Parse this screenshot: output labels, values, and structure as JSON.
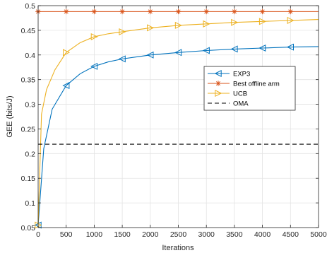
{
  "chart_data": {
    "type": "line",
    "xlabel": "Iterations",
    "ylabel": "GEE (bits/J)",
    "xlim": [
      0,
      5000
    ],
    "ylim": [
      0.05,
      0.5
    ],
    "xticks": [
      0,
      500,
      1000,
      1500,
      2000,
      2500,
      3000,
      3500,
      4000,
      4500,
      5000
    ],
    "yticks": [
      0.05,
      0.1,
      0.15,
      0.2,
      0.25,
      0.3,
      0.35,
      0.4,
      0.45,
      0.5
    ],
    "grid": true,
    "legend_position": "center-right",
    "series": [
      {
        "name": "EXP3",
        "color": "#0072BD",
        "marker": "triangle-left",
        "x": [
          0,
          100,
          250,
          500,
          750,
          1000,
          1250,
          1500,
          1750,
          2000,
          2500,
          3000,
          3500,
          4000,
          4500,
          5000
        ],
        "y": [
          0.055,
          0.21,
          0.29,
          0.338,
          0.362,
          0.377,
          0.386,
          0.392,
          0.396,
          0.4,
          0.405,
          0.409,
          0.412,
          0.414,
          0.416,
          0.417
        ],
        "marker_x": [
          0,
          500,
          1000,
          1500,
          2000,
          2500,
          3000,
          3500,
          4000,
          4500
        ]
      },
      {
        "name": "Best offline arm",
        "color": "#D95319",
        "marker": "asterisk",
        "x": [
          0,
          5000
        ],
        "y": [
          0.488,
          0.488
        ],
        "marker_x": [
          0,
          500,
          1000,
          1500,
          2000,
          2500,
          3000,
          3500,
          4000,
          4500
        ]
      },
      {
        "name": "UCB",
        "color": "#EDB120",
        "marker": "triangle-right",
        "x": [
          0,
          60,
          150,
          300,
          500,
          750,
          1000,
          1250,
          1500,
          1750,
          2000,
          2500,
          3000,
          3500,
          4000,
          4500,
          5000
        ],
        "y": [
          0.055,
          0.28,
          0.33,
          0.37,
          0.405,
          0.425,
          0.437,
          0.443,
          0.447,
          0.451,
          0.455,
          0.46,
          0.463,
          0.466,
          0.468,
          0.47,
          0.472
        ],
        "marker_x": [
          0,
          500,
          1000,
          1500,
          2000,
          2500,
          3000,
          3500,
          4000,
          4500
        ]
      },
      {
        "name": "OMA",
        "color": "#000000",
        "marker": "none",
        "dash": true,
        "x": [
          0,
          5000
        ],
        "y": [
          0.219,
          0.219
        ]
      }
    ]
  }
}
